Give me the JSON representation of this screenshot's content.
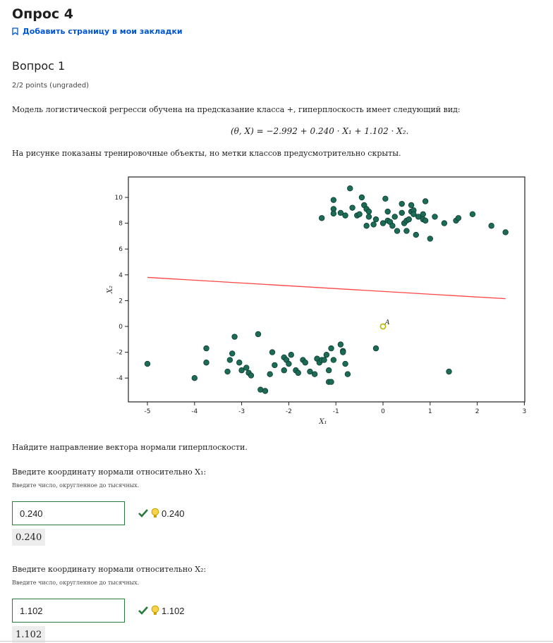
{
  "header": {
    "quiz_title": "Опрос 4",
    "bookmark_label": "Добавить страницу в мои закладки"
  },
  "question": {
    "title": "Вопрос 1",
    "points": "2/2 points (ungraded)",
    "intro": "Модель логистической регресси обучена на предсказание класса +, гиперплоскость имеет следующий вид:",
    "formula": "(θ, X) = −2.992 + 0.240 · X₁ + 1.102 · X₂.",
    "figure_caption": "На рисунке показаны тренировочные объекты, но метки классов предусмотрительно скрыты.",
    "task": "Найдите направление вектора нормали гиперплоскости.",
    "parts": [
      {
        "label": "Введите координату нормали относительно X₁:",
        "hint": "Введите число, округленное до тысячных.",
        "value": "0.240",
        "answer_shown": "0.240",
        "preview": "0.240"
      },
      {
        "label": "Введите координату нормали относительно X₂:",
        "hint": "Введите число, округленное до тысячных.",
        "value": "1.102",
        "answer_shown": "1.102",
        "preview": "1.102"
      }
    ]
  },
  "colors": {
    "point": "#1b6b56",
    "line": "#ff4444",
    "correct": "#2a7a3b",
    "hint_bulb": "#e6b800",
    "link": "#0056d2"
  },
  "chart_data": {
    "type": "scatter",
    "xlabel": "X₁",
    "ylabel": "X₂",
    "xlim": [
      -5,
      3
    ],
    "ylim": [
      -6,
      10.9
    ],
    "x_ticks": [
      -5,
      -4,
      -3,
      -2,
      -1,
      0,
      1,
      2,
      3
    ],
    "y_ticks": [
      10,
      8,
      6,
      4,
      2,
      0,
      -2,
      -4
    ],
    "annotation": {
      "label": "A",
      "x": 0,
      "y": 0
    },
    "line": {
      "x": [
        -5,
        2.6
      ],
      "y": [
        3.8,
        2.15
      ]
    },
    "points_upper": [
      [
        -1.3,
        8.4
      ],
      [
        -1.05,
        9.8
      ],
      [
        -1.05,
        9.1
      ],
      [
        -1.05,
        8.75
      ],
      [
        -0.9,
        8.8
      ],
      [
        -0.8,
        8.6
      ],
      [
        -0.7,
        10.7
      ],
      [
        -0.65,
        9.2
      ],
      [
        -0.55,
        8.6
      ],
      [
        -0.5,
        8.7
      ],
      [
        -0.45,
        10
      ],
      [
        -0.4,
        9.4
      ],
      [
        -0.35,
        9.1
      ],
      [
        -0.3,
        8.9
      ],
      [
        -0.3,
        8.5
      ],
      [
        -0.35,
        7.8
      ],
      [
        -0.2,
        7.9
      ],
      [
        -0.15,
        8.3
      ],
      [
        0,
        8
      ],
      [
        0.05,
        9.9
      ],
      [
        0.1,
        8.9
      ],
      [
        0.1,
        8.2
      ],
      [
        0.15,
        8.1
      ],
      [
        0.2,
        7.8
      ],
      [
        0.25,
        8.5
      ],
      [
        0.3,
        7.4
      ],
      [
        0.4,
        9.5
      ],
      [
        0.4,
        8.8
      ],
      [
        0.45,
        8
      ],
      [
        0.5,
        7.4
      ],
      [
        0.5,
        8.2
      ],
      [
        0.55,
        8.3
      ],
      [
        0.6,
        9.4
      ],
      [
        0.6,
        8.9
      ],
      [
        0.65,
        9
      ],
      [
        0.65,
        8.7
      ],
      [
        0.7,
        7.1
      ],
      [
        0.75,
        8.5
      ],
      [
        0.85,
        8.7
      ],
      [
        0.85,
        8.3
      ],
      [
        0.9,
        9.7
      ],
      [
        0.9,
        8.2
      ],
      [
        1.0,
        6.8
      ],
      [
        1.1,
        8.5
      ],
      [
        1.3,
        8
      ],
      [
        1.55,
        8.2
      ],
      [
        1.6,
        8.4
      ],
      [
        1.9,
        8.7
      ],
      [
        2.3,
        7.8
      ],
      [
        2.6,
        7.3
      ]
    ],
    "points_lower": [
      [
        -5,
        -2.9
      ],
      [
        -4,
        -4
      ],
      [
        -3.75,
        -1.7
      ],
      [
        -3.75,
        -2.8
      ],
      [
        -3.3,
        -3.5
      ],
      [
        -3.25,
        -2.6
      ],
      [
        -3.2,
        -2.1
      ],
      [
        -3.15,
        -0.8
      ],
      [
        -3.05,
        -2.8
      ],
      [
        -3,
        -3.4
      ],
      [
        -2.9,
        -3.2
      ],
      [
        -2.85,
        -3.6
      ],
      [
        -2.8,
        -3.8
      ],
      [
        -2.65,
        -0.6
      ],
      [
        -2.6,
        -4.9
      ],
      [
        -2.5,
        -5
      ],
      [
        -2.4,
        -3.7
      ],
      [
        -2.35,
        -2
      ],
      [
        -2.3,
        -3
      ],
      [
        -2.1,
        -3.4
      ],
      [
        -2.1,
        -2.4
      ],
      [
        -2.05,
        -2.6
      ],
      [
        -2,
        -2.9
      ],
      [
        -1.95,
        -2.2
      ],
      [
        -1.85,
        -3.4
      ],
      [
        -1.8,
        -3.6
      ],
      [
        -1.7,
        -2.6
      ],
      [
        -1.65,
        -2.8
      ],
      [
        -1.55,
        -3.5
      ],
      [
        -1.45,
        -3.7
      ],
      [
        -1.4,
        -2.5
      ],
      [
        -1.35,
        -2.8
      ],
      [
        -1.3,
        -2.6
      ],
      [
        -1.25,
        -2.6
      ],
      [
        -1.2,
        -2.2
      ],
      [
        -1.15,
        -3.4
      ],
      [
        -1.15,
        -4.3
      ],
      [
        -1.1,
        -4.3
      ],
      [
        -1.1,
        -1.7
      ],
      [
        -1.05,
        -2.6
      ],
      [
        -0.9,
        -1.4
      ],
      [
        -0.85,
        -1.9
      ],
      [
        -0.85,
        -2
      ],
      [
        -0.8,
        -2.9
      ],
      [
        -0.75,
        -3.7
      ],
      [
        -0.15,
        -1.7
      ],
      [
        1.4,
        -3.5
      ]
    ]
  }
}
